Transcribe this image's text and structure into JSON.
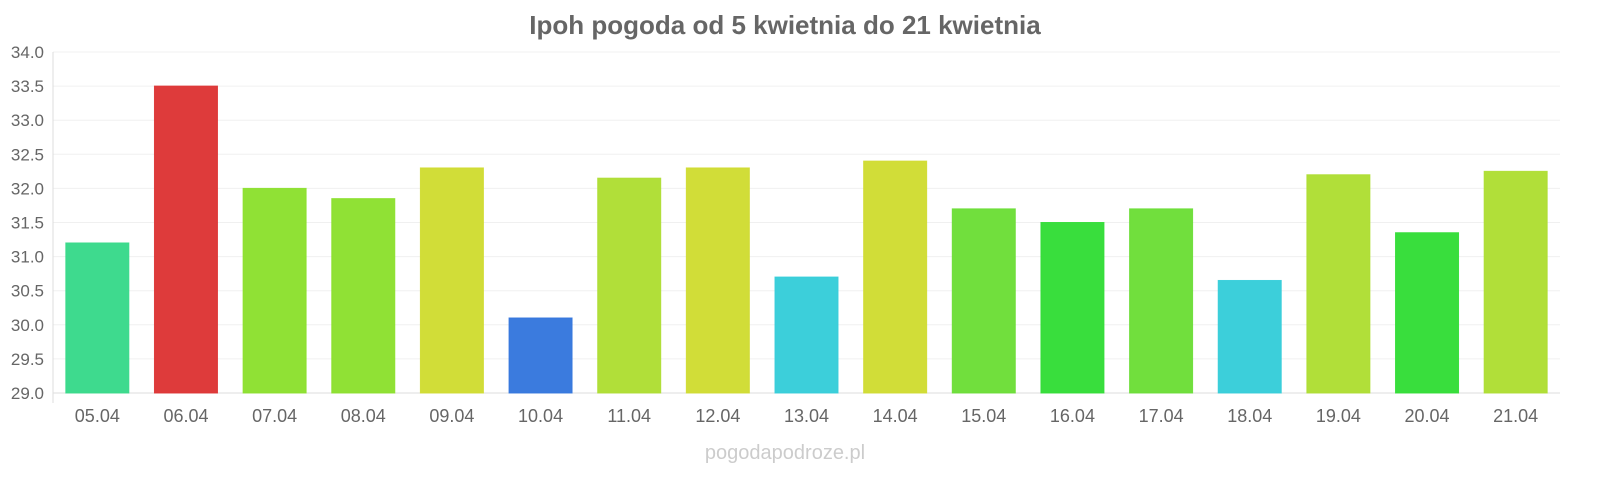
{
  "chart_data": {
    "type": "bar",
    "title": "Ipoh pogoda od 5 kwietnia do 21 kwietnia",
    "xlabel": "",
    "ylabel": "",
    "ylim": [
      29.0,
      34.0
    ],
    "yticks": [
      "29.0",
      "29.5",
      "30.0",
      "30.5",
      "31.0",
      "31.5",
      "32.0",
      "32.5",
      "33.0",
      "33.5",
      "34.0"
    ],
    "categories": [
      "05.04",
      "06.04",
      "07.04",
      "08.04",
      "09.04",
      "10.04",
      "11.04",
      "12.04",
      "13.04",
      "14.04",
      "15.04",
      "16.04",
      "17.04",
      "18.04",
      "19.04",
      "20.04",
      "21.04"
    ],
    "values": [
      31.2,
      33.5,
      32.0,
      31.85,
      32.3,
      30.1,
      32.15,
      32.3,
      30.7,
      32.4,
      31.7,
      31.5,
      31.7,
      30.65,
      32.2,
      31.35,
      32.25
    ],
    "colors": [
      "#38d98a",
      "#dd3535",
      "#8ce02e",
      "#8ce02e",
      "#d0dc32",
      "#3577dd",
      "#aede33",
      "#d0dc32",
      "#36cdd9",
      "#d0dc32",
      "#6cde37",
      "#33dd37",
      "#6cde37",
      "#36cdd9",
      "#aede33",
      "#33dd37",
      "#aede33"
    ],
    "grid": true,
    "legend": "none"
  },
  "footer": "pogodapodroze.pl"
}
